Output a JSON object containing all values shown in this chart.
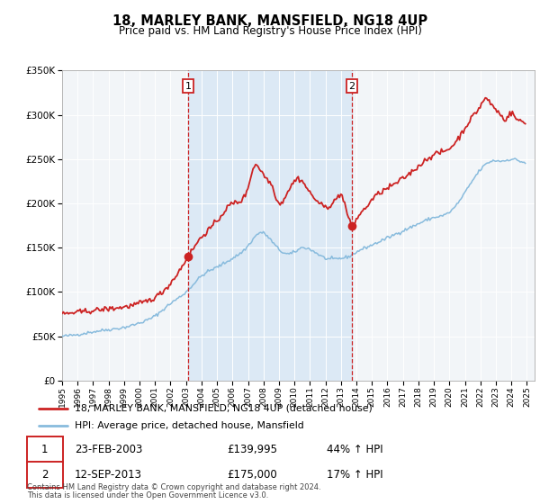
{
  "title": "18, MARLEY BANK, MANSFIELD, NG18 4UP",
  "subtitle": "Price paid vs. HM Land Registry's House Price Index (HPI)",
  "legend_label_red": "18, MARLEY BANK, MANSFIELD, NG18 4UP (detached house)",
  "legend_label_blue": "HPI: Average price, detached house, Mansfield",
  "annotation1_label": "1",
  "annotation1_date": "23-FEB-2003",
  "annotation1_price": "£139,995",
  "annotation1_hpi": "44% ↑ HPI",
  "annotation2_label": "2",
  "annotation2_date": "12-SEP-2013",
  "annotation2_price": "£175,000",
  "annotation2_hpi": "17% ↑ HPI",
  "footnote1": "Contains HM Land Registry data © Crown copyright and database right 2024.",
  "footnote2": "This data is licensed under the Open Government Licence v3.0.",
  "ylim": [
    0,
    350000
  ],
  "xlim_start": 1995.0,
  "xlim_end": 2025.5,
  "sale1_x": 2003.14,
  "sale1_y": 139995,
  "sale2_x": 2013.71,
  "sale2_y": 175000,
  "bg_span_color": "#dce9f5",
  "plot_bg": "#e8eef5",
  "outer_bg": "#f2f5f8",
  "red_color": "#cc2222",
  "blue_color": "#88bbdd",
  "grid_color": "#ffffff"
}
